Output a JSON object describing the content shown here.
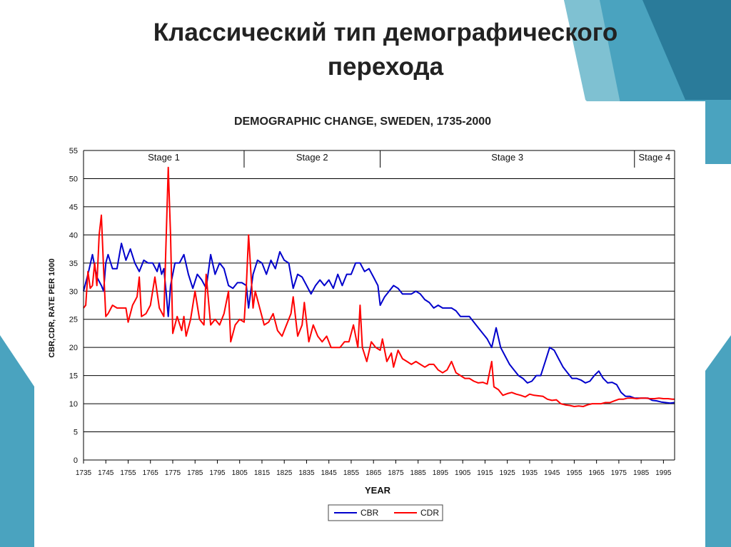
{
  "slide": {
    "title_line1": "Классический тип демографического",
    "title_line2": "перехода"
  },
  "colors": {
    "teal_dark": "#2a7b9a",
    "teal": "#4aa3bf",
    "teal_light": "#7fc1d2",
    "cbr": "#0000cc",
    "cdr": "#ff0000"
  },
  "chart_data": {
    "type": "line",
    "title": "DEMOGRAPHIC CHANGE, SWEDEN, 1735-2000",
    "xlabel": "YEAR",
    "ylabel": "CBR,CDR, RATE PER 1000",
    "xlim": [
      1735,
      2000
    ],
    "ylim": [
      0,
      55
    ],
    "x_ticks": [
      1735,
      1745,
      1755,
      1765,
      1775,
      1785,
      1795,
      1805,
      1815,
      1825,
      1835,
      1845,
      1855,
      1865,
      1875,
      1885,
      1895,
      1905,
      1915,
      1925,
      1935,
      1945,
      1955,
      1965,
      1975,
      1985,
      1995
    ],
    "y_ticks": [
      0,
      5,
      10,
      15,
      20,
      25,
      30,
      35,
      40,
      45,
      50,
      55
    ],
    "grid": "horizontal",
    "legend": "bottom-center",
    "stages": [
      {
        "label": "Stage 1",
        "start": 1735,
        "end": 1807
      },
      {
        "label": "Stage 2",
        "start": 1807,
        "end": 1868
      },
      {
        "label": "Stage 3",
        "start": 1868,
        "end": 1982
      },
      {
        "label": "Stage 4",
        "start": 1982,
        "end": 2000
      }
    ],
    "series": [
      {
        "name": "CBR",
        "color": "#0000cc",
        "points": [
          [
            1735,
            30
          ],
          [
            1737,
            33
          ],
          [
            1739,
            36.5
          ],
          [
            1741,
            32.5
          ],
          [
            1743,
            31
          ],
          [
            1744,
            30
          ],
          [
            1745,
            35
          ],
          [
            1746,
            36.5
          ],
          [
            1748,
            34
          ],
          [
            1750,
            34
          ],
          [
            1752,
            38.5
          ],
          [
            1754,
            35.5
          ],
          [
            1756,
            37.5
          ],
          [
            1758,
            35
          ],
          [
            1760,
            33.5
          ],
          [
            1762,
            35.5
          ],
          [
            1764,
            35
          ],
          [
            1766,
            35
          ],
          [
            1768,
            33.5
          ],
          [
            1769,
            35
          ],
          [
            1770,
            33
          ],
          [
            1771,
            34
          ],
          [
            1772,
            30
          ],
          [
            1773,
            25.5
          ],
          [
            1774,
            31
          ],
          [
            1776,
            35
          ],
          [
            1778,
            35
          ],
          [
            1780,
            36.5
          ],
          [
            1782,
            33
          ],
          [
            1784,
            30.5
          ],
          [
            1786,
            33
          ],
          [
            1788,
            32
          ],
          [
            1790,
            30.5
          ],
          [
            1792,
            36.5
          ],
          [
            1794,
            33
          ],
          [
            1796,
            35
          ],
          [
            1798,
            34
          ],
          [
            1800,
            31
          ],
          [
            1802,
            30.5
          ],
          [
            1804,
            31.5
          ],
          [
            1806,
            31.5
          ],
          [
            1808,
            31
          ],
          [
            1809,
            27
          ],
          [
            1811,
            33
          ],
          [
            1813,
            35.5
          ],
          [
            1815,
            35
          ],
          [
            1817,
            33
          ],
          [
            1819,
            35.5
          ],
          [
            1821,
            34
          ],
          [
            1823,
            37
          ],
          [
            1825,
            35.5
          ],
          [
            1827,
            35
          ],
          [
            1829,
            30.5
          ],
          [
            1831,
            33
          ],
          [
            1833,
            32.5
          ],
          [
            1835,
            31
          ],
          [
            1837,
            29.5
          ],
          [
            1839,
            31
          ],
          [
            1841,
            32
          ],
          [
            1843,
            31
          ],
          [
            1845,
            32
          ],
          [
            1847,
            30.5
          ],
          [
            1849,
            33
          ],
          [
            1851,
            31
          ],
          [
            1853,
            33
          ],
          [
            1855,
            33
          ],
          [
            1857,
            35
          ],
          [
            1859,
            35
          ],
          [
            1861,
            33.5
          ],
          [
            1863,
            34
          ],
          [
            1865,
            32.5
          ],
          [
            1867,
            31
          ],
          [
            1868,
            27.5
          ],
          [
            1870,
            29
          ],
          [
            1872,
            30
          ],
          [
            1874,
            31
          ],
          [
            1876,
            30.5
          ],
          [
            1878,
            29.5
          ],
          [
            1880,
            29.5
          ],
          [
            1882,
            29.5
          ],
          [
            1884,
            30
          ],
          [
            1886,
            29.5
          ],
          [
            1888,
            28.5
          ],
          [
            1890,
            28
          ],
          [
            1892,
            27
          ],
          [
            1894,
            27.5
          ],
          [
            1896,
            27
          ],
          [
            1898,
            27
          ],
          [
            1900,
            27
          ],
          [
            1902,
            26.5
          ],
          [
            1904,
            25.5
          ],
          [
            1906,
            25.5
          ],
          [
            1908,
            25.5
          ],
          [
            1910,
            24.5
          ],
          [
            1912,
            23.5
          ],
          [
            1914,
            22.5
          ],
          [
            1916,
            21.5
          ],
          [
            1918,
            20
          ],
          [
            1920,
            23.5
          ],
          [
            1922,
            20
          ],
          [
            1924,
            18.5
          ],
          [
            1926,
            17
          ],
          [
            1928,
            16
          ],
          [
            1930,
            15
          ],
          [
            1932,
            14.5
          ],
          [
            1934,
            13.7
          ],
          [
            1936,
            14
          ],
          [
            1938,
            15
          ],
          [
            1940,
            15
          ],
          [
            1942,
            17.5
          ],
          [
            1944,
            20
          ],
          [
            1946,
            19.5
          ],
          [
            1948,
            18
          ],
          [
            1950,
            16.5
          ],
          [
            1952,
            15.5
          ],
          [
            1954,
            14.5
          ],
          [
            1956,
            14.5
          ],
          [
            1958,
            14.2
          ],
          [
            1960,
            13.7
          ],
          [
            1962,
            14
          ],
          [
            1964,
            15
          ],
          [
            1966,
            15.8
          ],
          [
            1968,
            14.5
          ],
          [
            1970,
            13.7
          ],
          [
            1972,
            13.8
          ],
          [
            1974,
            13.4
          ],
          [
            1976,
            12
          ],
          [
            1978,
            11.3
          ],
          [
            1980,
            11.3
          ],
          [
            1982,
            11
          ],
          [
            1984,
            11
          ],
          [
            1986,
            11
          ],
          [
            1988,
            11
          ],
          [
            1990,
            10.6
          ],
          [
            1992,
            10.5
          ],
          [
            1994,
            10.3
          ],
          [
            1996,
            10.2
          ],
          [
            1998,
            10.1
          ],
          [
            2000,
            10.2
          ]
        ]
      },
      {
        "name": "CDR",
        "color": "#ff0000",
        "points": [
          [
            1735,
            27
          ],
          [
            1736,
            27.5
          ],
          [
            1737,
            33.5
          ],
          [
            1738,
            30.5
          ],
          [
            1739,
            31
          ],
          [
            1740,
            35
          ],
          [
            1741,
            31
          ],
          [
            1742,
            40
          ],
          [
            1743,
            43.5
          ],
          [
            1744,
            34
          ],
          [
            1745,
            25.5
          ],
          [
            1746,
            26
          ],
          [
            1748,
            27.5
          ],
          [
            1750,
            27
          ],
          [
            1752,
            27
          ],
          [
            1754,
            27
          ],
          [
            1755,
            24.5
          ],
          [
            1757,
            27.5
          ],
          [
            1759,
            29
          ],
          [
            1760,
            32.5
          ],
          [
            1761,
            25.5
          ],
          [
            1763,
            26
          ],
          [
            1765,
            27.5
          ],
          [
            1767,
            32.5
          ],
          [
            1769,
            27
          ],
          [
            1771,
            25.5
          ],
          [
            1773,
            52
          ],
          [
            1774,
            40
          ],
          [
            1775,
            22.5
          ],
          [
            1777,
            25.5
          ],
          [
            1779,
            23
          ],
          [
            1780,
            25.5
          ],
          [
            1781,
            22
          ],
          [
            1783,
            25
          ],
          [
            1785,
            30
          ],
          [
            1787,
            25
          ],
          [
            1789,
            24
          ],
          [
            1790,
            33
          ],
          [
            1792,
            24
          ],
          [
            1794,
            25
          ],
          [
            1796,
            24
          ],
          [
            1798,
            26
          ],
          [
            1800,
            30
          ],
          [
            1801,
            21
          ],
          [
            1803,
            24
          ],
          [
            1805,
            25
          ],
          [
            1807,
            24.5
          ],
          [
            1808,
            31
          ],
          [
            1809,
            40
          ],
          [
            1811,
            27
          ],
          [
            1812,
            30
          ],
          [
            1814,
            27
          ],
          [
            1816,
            24
          ],
          [
            1818,
            24.5
          ],
          [
            1820,
            26
          ],
          [
            1822,
            23
          ],
          [
            1824,
            22
          ],
          [
            1826,
            24
          ],
          [
            1828,
            26
          ],
          [
            1829,
            29
          ],
          [
            1831,
            22
          ],
          [
            1833,
            24
          ],
          [
            1834,
            28
          ],
          [
            1836,
            21
          ],
          [
            1838,
            24
          ],
          [
            1840,
            22
          ],
          [
            1842,
            21
          ],
          [
            1844,
            22
          ],
          [
            1846,
            20
          ],
          [
            1848,
            20
          ],
          [
            1850,
            20
          ],
          [
            1852,
            21
          ],
          [
            1854,
            21
          ],
          [
            1856,
            24
          ],
          [
            1858,
            20
          ],
          [
            1859,
            27.5
          ],
          [
            1860,
            20
          ],
          [
            1862,
            17.5
          ],
          [
            1864,
            21
          ],
          [
            1866,
            20
          ],
          [
            1868,
            19.5
          ],
          [
            1869,
            21.5
          ],
          [
            1871,
            17.5
          ],
          [
            1873,
            19
          ],
          [
            1874,
            16.5
          ],
          [
            1876,
            19.5
          ],
          [
            1878,
            18
          ],
          [
            1880,
            17.5
          ],
          [
            1882,
            17
          ],
          [
            1884,
            17.5
          ],
          [
            1886,
            17
          ],
          [
            1888,
            16.5
          ],
          [
            1890,
            17
          ],
          [
            1892,
            17
          ],
          [
            1894,
            16
          ],
          [
            1896,
            15.5
          ],
          [
            1898,
            16
          ],
          [
            1900,
            17.5
          ],
          [
            1902,
            15.5
          ],
          [
            1904,
            15
          ],
          [
            1906,
            14.5
          ],
          [
            1908,
            14.5
          ],
          [
            1910,
            14
          ],
          [
            1912,
            13.7
          ],
          [
            1914,
            13.8
          ],
          [
            1916,
            13.5
          ],
          [
            1918,
            17.5
          ],
          [
            1919,
            13
          ],
          [
            1921,
            12.5
          ],
          [
            1923,
            11.5
          ],
          [
            1925,
            11.8
          ],
          [
            1927,
            12
          ],
          [
            1929,
            11.7
          ],
          [
            1931,
            11.5
          ],
          [
            1933,
            11.2
          ],
          [
            1935,
            11.7
          ],
          [
            1937,
            11.5
          ],
          [
            1939,
            11.4
          ],
          [
            1941,
            11.3
          ],
          [
            1943,
            10.8
          ],
          [
            1945,
            10.6
          ],
          [
            1947,
            10.7
          ],
          [
            1949,
            10
          ],
          [
            1951,
            9.8
          ],
          [
            1953,
            9.7
          ],
          [
            1955,
            9.5
          ],
          [
            1957,
            9.6
          ],
          [
            1959,
            9.5
          ],
          [
            1961,
            9.8
          ],
          [
            1963,
            10
          ],
          [
            1965,
            10
          ],
          [
            1967,
            10
          ],
          [
            1969,
            10.2
          ],
          [
            1971,
            10.2
          ],
          [
            1973,
            10.5
          ],
          [
            1975,
            10.8
          ],
          [
            1977,
            10.8
          ],
          [
            1979,
            11
          ],
          [
            1981,
            11
          ],
          [
            1983,
            10.9
          ],
          [
            1985,
            11
          ],
          [
            1987,
            11
          ],
          [
            1989,
            10.9
          ],
          [
            1991,
            10.9
          ],
          [
            1993,
            11
          ],
          [
            1995,
            10.9
          ],
          [
            1997,
            10.9
          ],
          [
            1999,
            10.8
          ],
          [
            2000,
            10.8
          ]
        ]
      }
    ]
  }
}
